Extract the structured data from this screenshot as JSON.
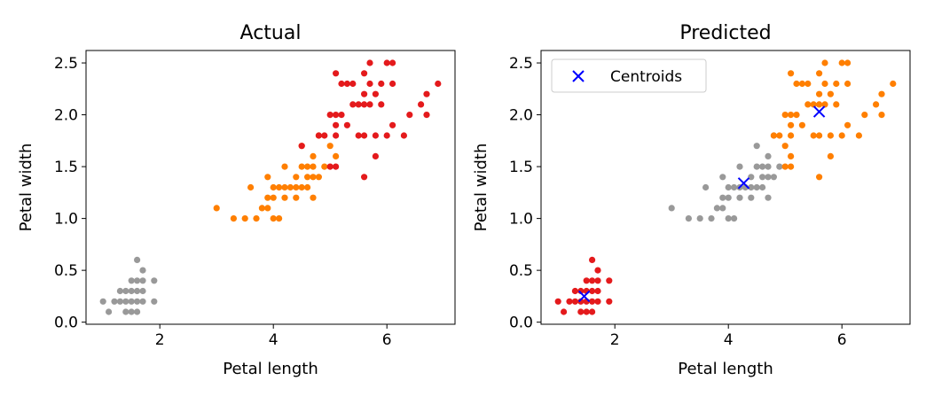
{
  "colors": {
    "gray": "#999999",
    "orange": "#ff7f00",
    "red": "#e41a1c",
    "centroid": "#0000ff"
  },
  "chart_data": [
    {
      "type": "scatter",
      "title": "Actual",
      "xlabel": "Petal length",
      "ylabel": "Petal width",
      "xlim": [
        0.7,
        7.2
      ],
      "ylim": [
        -0.02,
        2.62
      ],
      "xticks": [
        "2",
        "4",
        "6"
      ],
      "yticks": [
        "0.0",
        "0.5",
        "1.0",
        "1.5",
        "2.0",
        "2.5"
      ],
      "series": [
        {
          "color": "gray",
          "points": [
            [
              1.0,
              0.2
            ],
            [
              1.1,
              0.1
            ],
            [
              1.2,
              0.2
            ],
            [
              1.3,
              0.2
            ],
            [
              1.3,
              0.3
            ],
            [
              1.4,
              0.1
            ],
            [
              1.4,
              0.2
            ],
            [
              1.4,
              0.3
            ],
            [
              1.5,
              0.1
            ],
            [
              1.5,
              0.2
            ],
            [
              1.5,
              0.3
            ],
            [
              1.5,
              0.4
            ],
            [
              1.6,
              0.1
            ],
            [
              1.6,
              0.2
            ],
            [
              1.6,
              0.3
            ],
            [
              1.6,
              0.4
            ],
            [
              1.6,
              0.6
            ],
            [
              1.7,
              0.2
            ],
            [
              1.7,
              0.3
            ],
            [
              1.7,
              0.4
            ],
            [
              1.7,
              0.5
            ],
            [
              1.9,
              0.2
            ],
            [
              1.9,
              0.4
            ]
          ]
        },
        {
          "color": "orange",
          "points": [
            [
              3.0,
              1.1
            ],
            [
              3.3,
              1.0
            ],
            [
              3.5,
              1.0
            ],
            [
              3.6,
              1.3
            ],
            [
              3.7,
              1.0
            ],
            [
              3.8,
              1.1
            ],
            [
              3.9,
              1.1
            ],
            [
              3.9,
              1.2
            ],
            [
              3.9,
              1.4
            ],
            [
              4.0,
              1.0
            ],
            [
              4.0,
              1.2
            ],
            [
              4.0,
              1.3
            ],
            [
              4.1,
              1.0
            ],
            [
              4.1,
              1.3
            ],
            [
              4.2,
              1.2
            ],
            [
              4.2,
              1.3
            ],
            [
              4.2,
              1.5
            ],
            [
              4.3,
              1.3
            ],
            [
              4.4,
              1.2
            ],
            [
              4.4,
              1.3
            ],
            [
              4.4,
              1.4
            ],
            [
              4.5,
              1.3
            ],
            [
              4.5,
              1.5
            ],
            [
              4.5,
              1.7
            ],
            [
              4.6,
              1.3
            ],
            [
              4.6,
              1.4
            ],
            [
              4.6,
              1.5
            ],
            [
              4.7,
              1.2
            ],
            [
              4.7,
              1.4
            ],
            [
              4.7,
              1.5
            ],
            [
              4.7,
              1.6
            ],
            [
              4.8,
              1.4
            ],
            [
              4.8,
              1.8
            ],
            [
              4.9,
              1.5
            ],
            [
              5.0,
              1.7
            ],
            [
              5.1,
              1.6
            ]
          ]
        },
        {
          "color": "red",
          "points": [
            [
              4.5,
              1.7
            ],
            [
              4.8,
              1.8
            ],
            [
              4.9,
              1.8
            ],
            [
              5.0,
              1.5
            ],
            [
              5.0,
              2.0
            ],
            [
              5.1,
              1.5
            ],
            [
              5.1,
              1.8
            ],
            [
              5.1,
              1.9
            ],
            [
              5.1,
              2.0
            ],
            [
              5.1,
              2.4
            ],
            [
              5.2,
              2.0
            ],
            [
              5.2,
              2.3
            ],
            [
              5.3,
              1.9
            ],
            [
              5.3,
              2.3
            ],
            [
              5.4,
              2.1
            ],
            [
              5.4,
              2.3
            ],
            [
              5.5,
              1.8
            ],
            [
              5.5,
              2.1
            ],
            [
              5.6,
              1.4
            ],
            [
              5.6,
              1.8
            ],
            [
              5.6,
              2.1
            ],
            [
              5.6,
              2.2
            ],
            [
              5.6,
              2.4
            ],
            [
              5.7,
              2.1
            ],
            [
              5.7,
              2.3
            ],
            [
              5.7,
              2.5
            ],
            [
              5.8,
              1.6
            ],
            [
              5.8,
              1.8
            ],
            [
              5.8,
              2.2
            ],
            [
              5.9,
              2.1
            ],
            [
              5.9,
              2.3
            ],
            [
              6.0,
              1.8
            ],
            [
              6.0,
              2.5
            ],
            [
              6.1,
              1.9
            ],
            [
              6.1,
              2.3
            ],
            [
              6.1,
              2.5
            ],
            [
              6.3,
              1.8
            ],
            [
              6.4,
              2.0
            ],
            [
              6.6,
              2.1
            ],
            [
              6.7,
              2.0
            ],
            [
              6.7,
              2.2
            ],
            [
              6.9,
              2.3
            ]
          ]
        }
      ]
    },
    {
      "type": "scatter",
      "title": "Predicted",
      "xlabel": "Petal length",
      "ylabel": "Petal width",
      "xlim": [
        0.7,
        7.2
      ],
      "ylim": [
        -0.02,
        2.62
      ],
      "xticks": [
        "2",
        "4",
        "6"
      ],
      "yticks": [
        "0.0",
        "0.5",
        "1.0",
        "1.5",
        "2.0",
        "2.5"
      ],
      "legend": {
        "label": "Centroids",
        "position": "top-left"
      },
      "series": [
        {
          "color": "red",
          "points": [
            [
              1.0,
              0.2
            ],
            [
              1.1,
              0.1
            ],
            [
              1.2,
              0.2
            ],
            [
              1.3,
              0.2
            ],
            [
              1.3,
              0.3
            ],
            [
              1.4,
              0.1
            ],
            [
              1.4,
              0.2
            ],
            [
              1.4,
              0.3
            ],
            [
              1.5,
              0.1
            ],
            [
              1.5,
              0.2
            ],
            [
              1.5,
              0.3
            ],
            [
              1.5,
              0.4
            ],
            [
              1.6,
              0.1
            ],
            [
              1.6,
              0.2
            ],
            [
              1.6,
              0.3
            ],
            [
              1.6,
              0.4
            ],
            [
              1.6,
              0.6
            ],
            [
              1.7,
              0.2
            ],
            [
              1.7,
              0.3
            ],
            [
              1.7,
              0.4
            ],
            [
              1.7,
              0.5
            ],
            [
              1.9,
              0.2
            ],
            [
              1.9,
              0.4
            ]
          ]
        },
        {
          "color": "gray",
          "points": [
            [
              3.0,
              1.1
            ],
            [
              3.3,
              1.0
            ],
            [
              3.5,
              1.0
            ],
            [
              3.6,
              1.3
            ],
            [
              3.7,
              1.0
            ],
            [
              3.8,
              1.1
            ],
            [
              3.9,
              1.1
            ],
            [
              3.9,
              1.2
            ],
            [
              3.9,
              1.4
            ],
            [
              4.0,
              1.0
            ],
            [
              4.0,
              1.2
            ],
            [
              4.0,
              1.3
            ],
            [
              4.1,
              1.0
            ],
            [
              4.1,
              1.3
            ],
            [
              4.2,
              1.2
            ],
            [
              4.2,
              1.3
            ],
            [
              4.2,
              1.5
            ],
            [
              4.3,
              1.3
            ],
            [
              4.4,
              1.2
            ],
            [
              4.4,
              1.3
            ],
            [
              4.4,
              1.4
            ],
            [
              4.5,
              1.3
            ],
            [
              4.5,
              1.5
            ],
            [
              4.5,
              1.7
            ],
            [
              4.6,
              1.3
            ],
            [
              4.6,
              1.4
            ],
            [
              4.6,
              1.5
            ],
            [
              4.7,
              1.2
            ],
            [
              4.7,
              1.4
            ],
            [
              4.7,
              1.5
            ],
            [
              4.7,
              1.6
            ],
            [
              4.8,
              1.4
            ],
            [
              4.8,
              1.8
            ],
            [
              4.9,
              1.5
            ]
          ]
        },
        {
          "color": "orange",
          "points": [
            [
              5.0,
              1.7
            ],
            [
              5.1,
              1.6
            ],
            [
              4.8,
              1.8
            ],
            [
              4.9,
              1.8
            ],
            [
              5.0,
              1.5
            ],
            [
              5.0,
              2.0
            ],
            [
              5.1,
              1.5
            ],
            [
              5.1,
              1.8
            ],
            [
              5.1,
              1.9
            ],
            [
              5.1,
              2.0
            ],
            [
              5.1,
              2.4
            ],
            [
              5.2,
              2.0
            ],
            [
              5.2,
              2.3
            ],
            [
              5.3,
              1.9
            ],
            [
              5.3,
              2.3
            ],
            [
              5.4,
              2.1
            ],
            [
              5.4,
              2.3
            ],
            [
              5.5,
              1.8
            ],
            [
              5.5,
              2.1
            ],
            [
              5.6,
              1.4
            ],
            [
              5.6,
              1.8
            ],
            [
              5.6,
              2.1
            ],
            [
              5.6,
              2.2
            ],
            [
              5.6,
              2.4
            ],
            [
              5.7,
              2.1
            ],
            [
              5.7,
              2.3
            ],
            [
              5.7,
              2.5
            ],
            [
              5.8,
              1.6
            ],
            [
              5.8,
              1.8
            ],
            [
              5.8,
              2.2
            ],
            [
              5.9,
              2.1
            ],
            [
              5.9,
              2.3
            ],
            [
              6.0,
              1.8
            ],
            [
              6.0,
              2.5
            ],
            [
              6.1,
              1.9
            ],
            [
              6.1,
              2.3
            ],
            [
              6.1,
              2.5
            ],
            [
              6.3,
              1.8
            ],
            [
              6.4,
              2.0
            ],
            [
              6.6,
              2.1
            ],
            [
              6.7,
              2.0
            ],
            [
              6.7,
              2.2
            ],
            [
              6.9,
              2.3
            ]
          ]
        }
      ],
      "centroids": [
        [
          1.46,
          0.25
        ],
        [
          4.27,
          1.34
        ],
        [
          5.6,
          2.03
        ]
      ]
    }
  ]
}
